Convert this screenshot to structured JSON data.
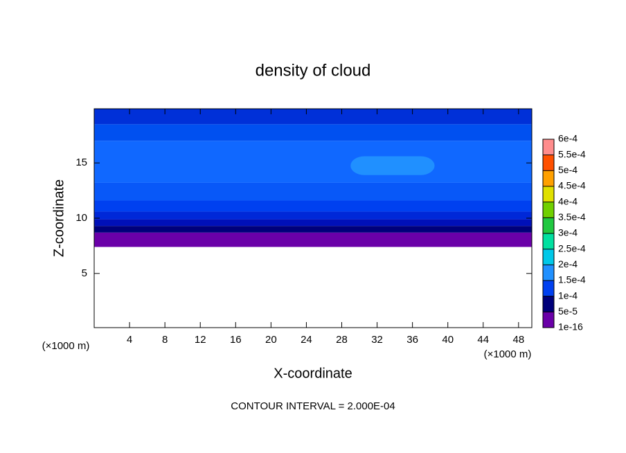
{
  "chart_data": {
    "type": "contour",
    "title": "density of cloud",
    "x_label": "X-coordinate",
    "y_label": "Z-coordinate",
    "x_unit": "(×1000 m)",
    "y_unit": "(×1000 m)",
    "footer": "CONTOUR INTERVAL = 2.000E-04",
    "xlim": [
      0,
      49.5
    ],
    "ylim": [
      0.1,
      19.9
    ],
    "xticks": [
      4,
      8,
      12,
      16,
      20,
      24,
      28,
      32,
      36,
      40,
      44,
      48
    ],
    "yticks": [
      5,
      10,
      15
    ],
    "layers": [
      {
        "z": [
          7.4,
          8.7
        ],
        "value": 2e-05,
        "color": "#6a00a8"
      },
      {
        "z": [
          8.7,
          9.3
        ],
        "value": 6e-05,
        "color": "#00007a"
      },
      {
        "z": [
          9.3,
          9.9
        ],
        "value": 8e-05,
        "color": "#0010b8"
      },
      {
        "z": [
          9.9,
          10.6
        ],
        "value": 9e-05,
        "color": "#0028d8"
      },
      {
        "z": [
          10.6,
          11.6
        ],
        "value": 0.0001,
        "color": "#0040f0"
      },
      {
        "z": [
          11.6,
          13.2
        ],
        "value": 0.00011,
        "color": "#0858f8"
      },
      {
        "z": [
          13.2,
          17
        ],
        "value": 0.00012,
        "color": "#1068ff"
      },
      {
        "z": [
          17,
          18.5
        ],
        "value": 0.00011,
        "color": "#0050f0"
      },
      {
        "z": [
          18.5,
          19.9
        ],
        "value": 9e-05,
        "color": "#0030d8"
      }
    ],
    "patches": [
      {
        "x": [
          29,
          38.5
        ],
        "z": [
          13.9,
          15.6
        ],
        "value": 0.00015,
        "color": "#2090ff"
      }
    ],
    "colorbar": {
      "levels": [
        {
          "value": 1e-16,
          "label": "1e-16"
        },
        {
          "value": 5e-05,
          "label": "5e-5"
        },
        {
          "value": 0.0001,
          "label": "1e-4"
        },
        {
          "value": 0.00015,
          "label": "1.5e-4"
        },
        {
          "value": 0.0002,
          "label": "2e-4"
        },
        {
          "value": 0.00025,
          "label": "2.5e-4"
        },
        {
          "value": 0.0003,
          "label": "3e-4"
        },
        {
          "value": 0.00035,
          "label": "3.5e-4"
        },
        {
          "value": 0.0004,
          "label": "4e-4"
        },
        {
          "value": 0.00045,
          "label": "4.5e-4"
        },
        {
          "value": 0.0005,
          "label": "5e-4"
        },
        {
          "value": 0.00055,
          "label": "5.5e-4"
        },
        {
          "value": 0.0006,
          "label": "6e-4"
        }
      ],
      "colors": [
        "#6a00a8",
        "#00007a",
        "#0040f0",
        "#2090ff",
        "#00c8e8",
        "#00e0a0",
        "#20c840",
        "#70d000",
        "#e0e000",
        "#ffa000",
        "#ff5000",
        "#ff8c8c"
      ]
    }
  }
}
